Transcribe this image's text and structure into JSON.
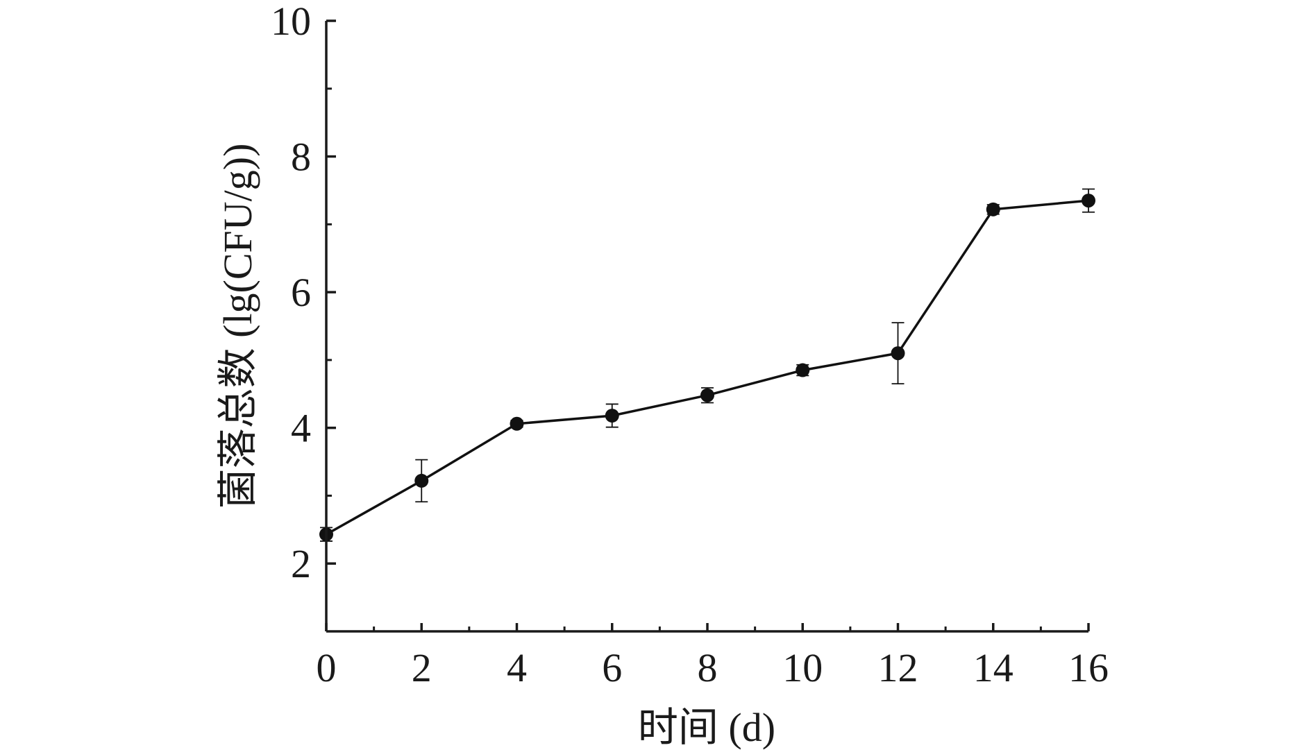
{
  "chart_data": {
    "type": "line",
    "title": "",
    "xlabel": "时间 (d)",
    "ylabel": "菌落总数 (lg(CFU/g))",
    "xlim": [
      0,
      16
    ],
    "ylim": [
      1,
      10
    ],
    "x_ticks": [
      0,
      2,
      4,
      6,
      8,
      10,
      12,
      14,
      16
    ],
    "x_tick_labels": [
      "0",
      "2",
      "4",
      "6",
      "8",
      "10",
      "12",
      "14",
      "16"
    ],
    "y_ticks": [
      2,
      4,
      6,
      8,
      10
    ],
    "y_tick_labels": [
      "2",
      "4",
      "6",
      "8",
      "10"
    ],
    "grid": false,
    "series": [
      {
        "x": [
          0,
          2,
          4,
          6,
          8,
          10,
          12,
          14,
          16
        ],
        "values": [
          2.43,
          3.22,
          4.06,
          4.18,
          4.48,
          4.85,
          5.1,
          7.22,
          7.35
        ],
        "errors": [
          0.1,
          0.31,
          0.05,
          0.17,
          0.11,
          0.08,
          0.45,
          0.07,
          0.17
        ]
      }
    ]
  }
}
